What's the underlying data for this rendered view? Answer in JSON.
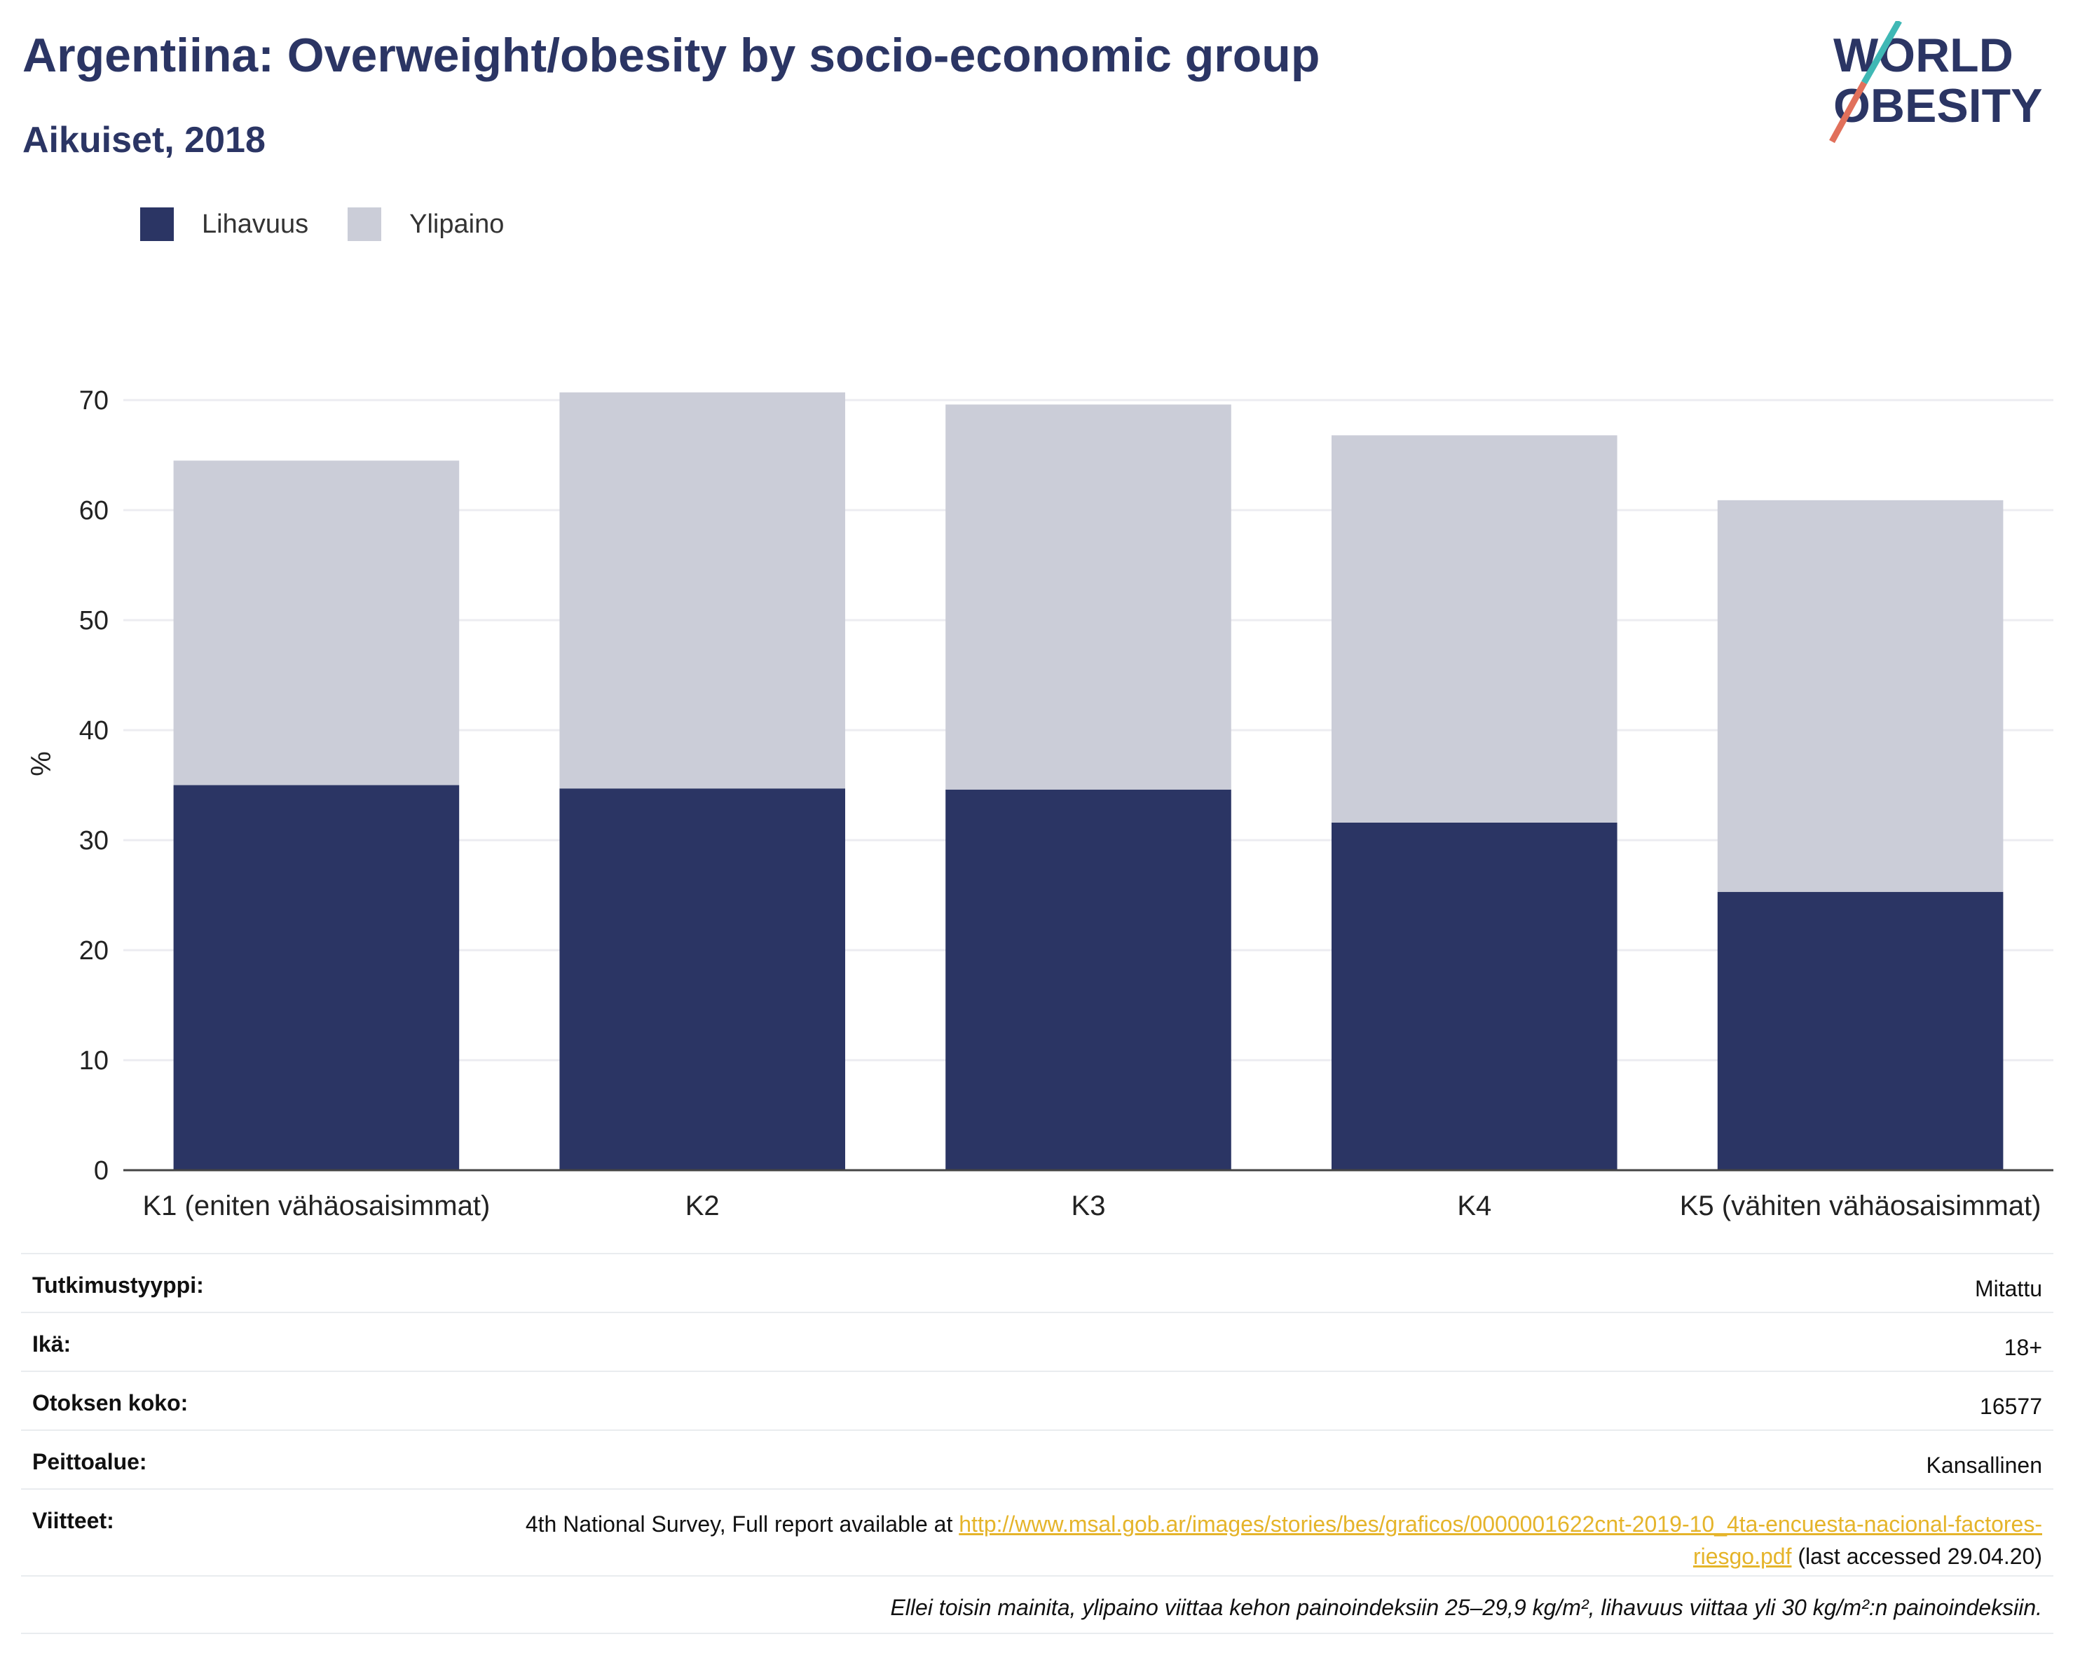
{
  "header": {
    "title": "Argentiina: Overweight/obesity by socio-economic group",
    "subtitle": "Aikuiset, 2018"
  },
  "logo": {
    "line1": "WORLD",
    "line2": "OBESITY"
  },
  "colors": {
    "obesity": "#2b3564",
    "overweight": "#cbcdd8",
    "title": "#2b3564",
    "link": "#e5b42a"
  },
  "legend": {
    "obesity_label": "Lihavuus",
    "overweight_label": "Ylipaino"
  },
  "chart_data": {
    "type": "bar",
    "stacked": true,
    "categories": [
      "K1 (eniten vähäosaisimmat)",
      "K2",
      "K3",
      "K4",
      "K5 (vähiten vähäosaisimmat)"
    ],
    "series": [
      {
        "name": "Lihavuus",
        "values": [
          35.0,
          34.7,
          34.6,
          31.6,
          25.3
        ]
      },
      {
        "name": "Ylipaino",
        "values": [
          29.5,
          36.0,
          35.0,
          35.2,
          35.6
        ]
      }
    ],
    "ylabel": "%",
    "ylim": [
      0,
      72
    ],
    "yticks": [
      0,
      10,
      20,
      30,
      40,
      50,
      60,
      70
    ],
    "grid": true
  },
  "table": {
    "study_type_label": "Tutkimustyyppi:",
    "study_type_value": "Mitattu",
    "age_label": "Ikä:",
    "age_value": "18+",
    "sample_label": "Otoksen koko:",
    "sample_value": "16577",
    "coverage_label": "Peittoalue:",
    "coverage_value": "Kansallinen",
    "refs_label": "Viitteet:",
    "refs_prefix": "4th National Survey, Full report available at ",
    "refs_link": "http://www.msal.gob.ar/images/stories/bes/graficos/0000001622cnt-2019-10_4ta-encuesta-nacional-factores-riesgo.pdf",
    "refs_suffix": " (last accessed 29.04.20)"
  },
  "footnote": "Ellei toisin mainita, ylipaino viittaa kehon painoindeksiin 25–29,9 kg/m², lihavuus viittaa yli 30 kg/m²:n painoindeksiin."
}
